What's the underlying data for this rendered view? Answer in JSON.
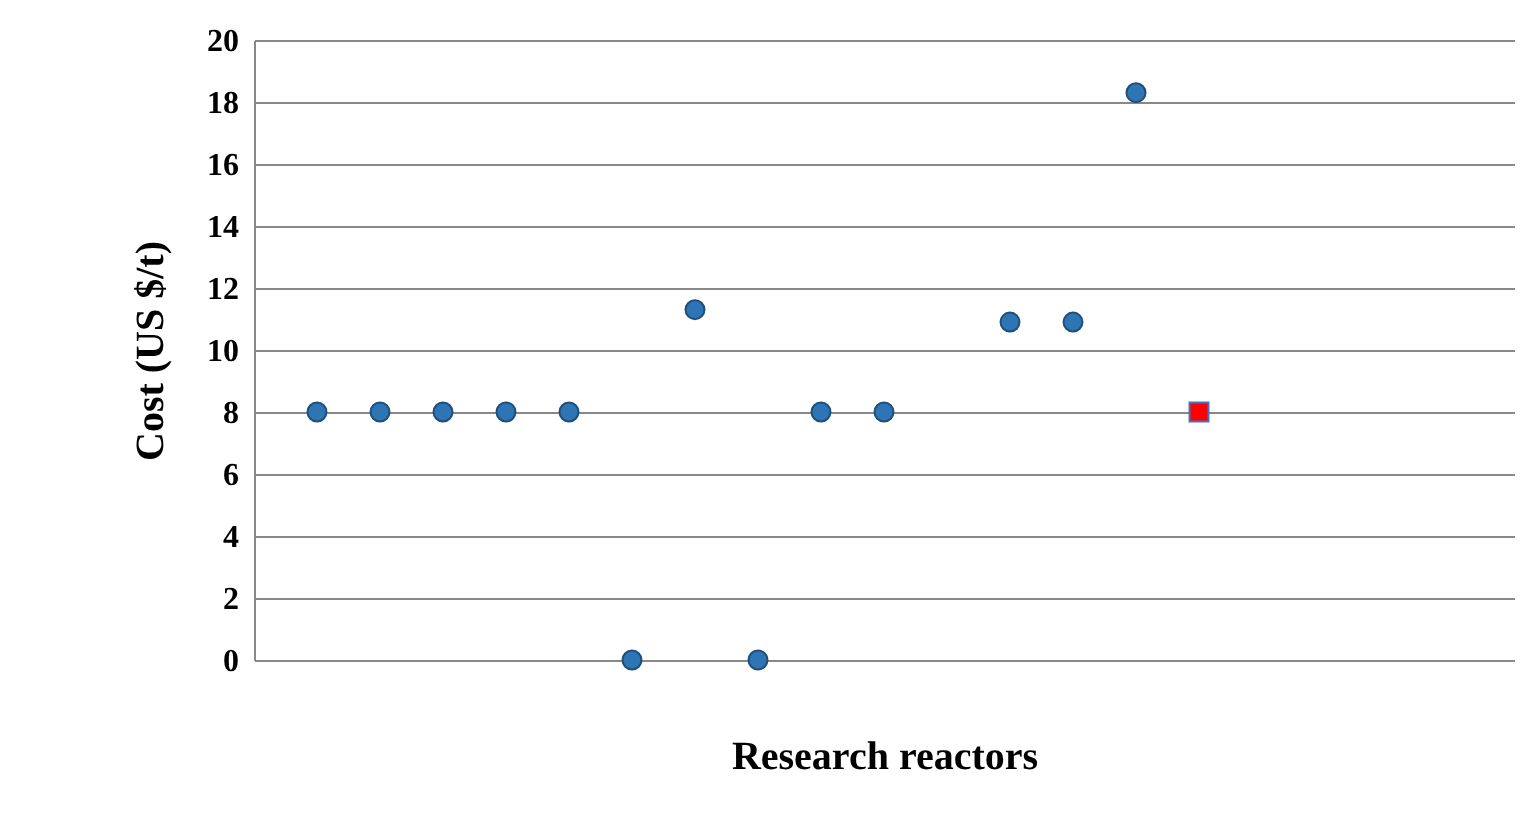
{
  "chart_data": {
    "type": "scatter",
    "xlabel": "Research reactors",
    "ylabel": "Cost (US $/t)",
    "categories": [
      null,
      null,
      null,
      null,
      null,
      null,
      null,
      null,
      null,
      null,
      null,
      null,
      null,
      null,
      null,
      null,
      null,
      null,
      null
    ],
    "ylim": [
      0,
      20
    ],
    "yticks": [
      0,
      2,
      4,
      6,
      8,
      10,
      12,
      14,
      16,
      18,
      20
    ],
    "grid": "y",
    "tick_labels": "y",
    "series": [
      {
        "color": "#2e75b6",
        "marker": "circle",
        "values": [
          8,
          8,
          8,
          8,
          8,
          0,
          11.3,
          0,
          8,
          8,
          null,
          10.9,
          10.9,
          18.3,
          null,
          null,
          null,
          null,
          null
        ]
      },
      {
        "color": "#ff0000",
        "marker": "square",
        "values": [
          null,
          null,
          null,
          null,
          null,
          null,
          null,
          null,
          null,
          null,
          null,
          null,
          null,
          null,
          8,
          null,
          null,
          null,
          null
        ]
      }
    ]
  }
}
